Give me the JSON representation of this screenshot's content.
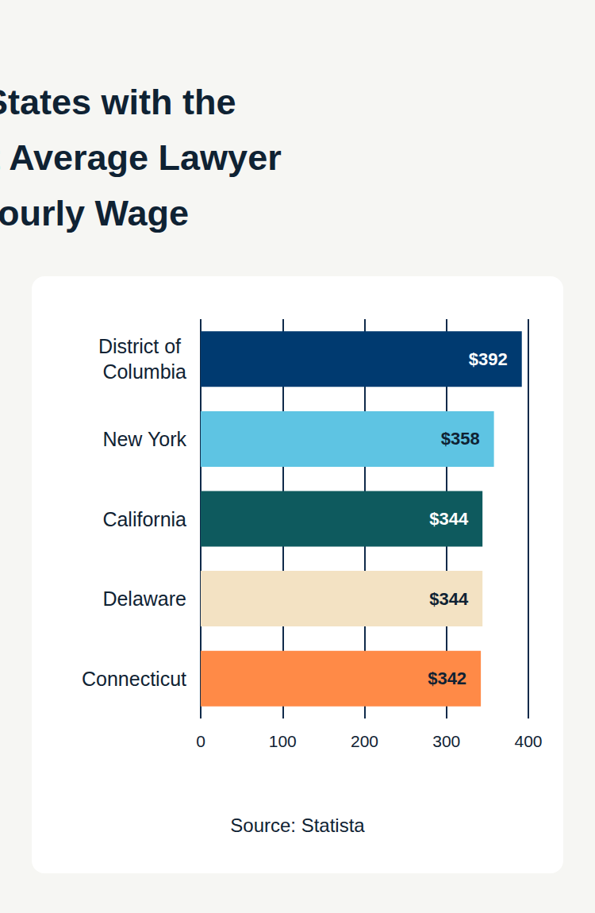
{
  "chart_data": {
    "type": "bar",
    "title": "U.S. States with the Highest Average Lawyer Hourly Wage",
    "source": "Source: Statista",
    "orientation": "horizontal",
    "categories": [
      "District of Columbia",
      "New York",
      "California",
      "Delaware",
      "Connecticut"
    ],
    "values": [
      392,
      358,
      344,
      344,
      342
    ],
    "value_labels": [
      "$392",
      "$358",
      "$344",
      "$344",
      "$342"
    ],
    "colors": [
      "#003a70",
      "#5ec4e3",
      "#0e5a5e",
      "#f3e2c3",
      "#ff8a47"
    ],
    "xlim": [
      0,
      400
    ],
    "xticks": [
      0,
      100,
      200,
      300,
      400
    ],
    "grid": true,
    "data_labels": true
  }
}
